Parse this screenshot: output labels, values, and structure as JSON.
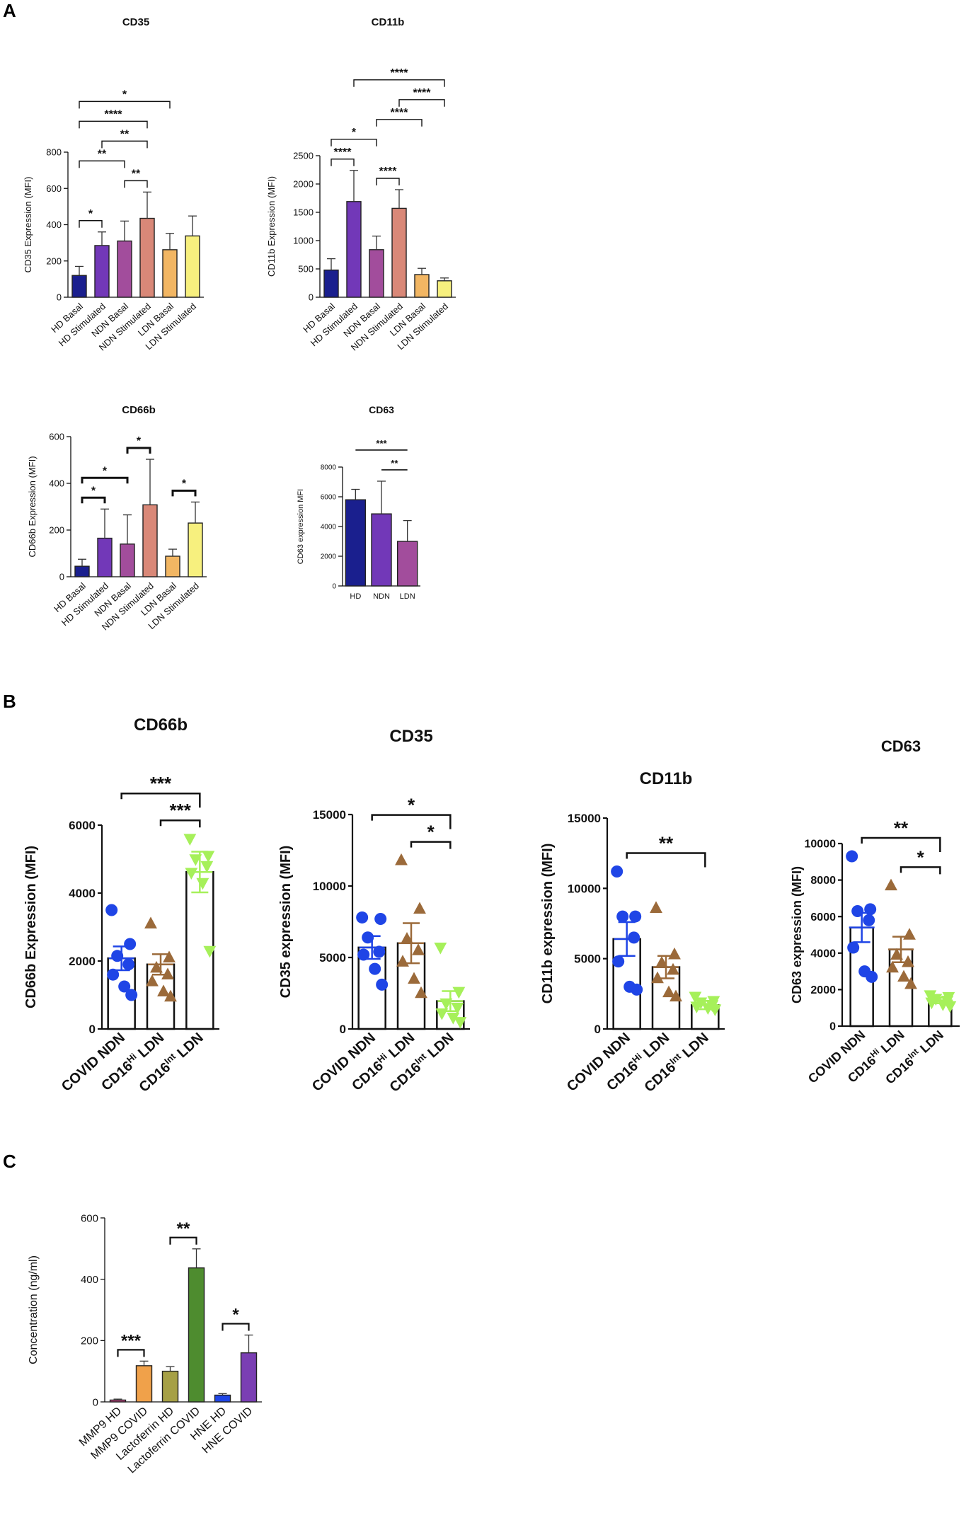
{
  "panels": {
    "a": "A",
    "b": "B",
    "c": "C"
  },
  "colors": {
    "hd_basal": "#1a1f8e",
    "hd_stim": "#7238b8",
    "ndn_basal": "#a24d9c",
    "ndn_stim": "#d98878",
    "ldn_basal": "#f2b663",
    "ldn_stim": "#f7f07e",
    "hd_bar": "#1a1f8e",
    "ndn_bar": "#7238b8",
    "ldn_bar": "#a24d9c",
    "blue_dot": "#1f45e6",
    "brown_tri": "#9b6a3a",
    "green_tri": "#a6f05a",
    "c_mmp9_hd": "#d9468f",
    "c_mmp9_covid": "#f0a14a",
    "c_lacto_hd": "#a6a045",
    "c_lacto_covid": "#4e8c2f",
    "c_hne_hd": "#1f45e6",
    "c_hne_covid": "#7a3eb3"
  },
  "chart_data": [
    {
      "id": "a_cd35",
      "type": "bar",
      "title": "CD35",
      "ylabel": "CD35 Expression (MFI)",
      "ylim": [
        0,
        800
      ],
      "yticks": [
        0,
        200,
        400,
        600,
        800
      ],
      "categories": [
        "HD Basal",
        "HD Stimulated",
        "NDN Basal",
        "NDN Stimulated",
        "LDN Basal",
        "LDN Stimulated"
      ],
      "values": [
        120,
        285,
        310,
        435,
        262,
        338
      ],
      "errors": [
        50,
        75,
        110,
        145,
        90,
        110
      ],
      "colors": [
        "hd_basal",
        "hd_stim",
        "ndn_basal",
        "ndn_stim",
        "ldn_basal",
        "ldn_stim"
      ],
      "annotations": [
        {
          "from": 0,
          "to": 1,
          "label": "*"
        },
        {
          "from": 2,
          "to": 3,
          "label": "**"
        },
        {
          "from": 0,
          "to": 2,
          "label": "**"
        },
        {
          "from": 1,
          "to": 3,
          "label": "**"
        },
        {
          "from": 0,
          "to": 3,
          "label": "****"
        },
        {
          "from": 0,
          "to": 4,
          "label": "*"
        }
      ]
    },
    {
      "id": "a_cd11b",
      "type": "bar",
      "title": "CD11b",
      "ylabel": "CD11b Expression (MFI)",
      "ylim": [
        0,
        2500
      ],
      "yticks": [
        0,
        500,
        1000,
        1500,
        2000,
        2500
      ],
      "categories": [
        "HD Basal",
        "HD Stimulated",
        "NDN Basal",
        "NDN Stimulated",
        "LDN Basal",
        "LDN Stimulated"
      ],
      "values": [
        480,
        1690,
        840,
        1570,
        400,
        290
      ],
      "errors": [
        200,
        550,
        240,
        330,
        110,
        50
      ],
      "colors": [
        "hd_basal",
        "hd_stim",
        "ndn_basal",
        "ndn_stim",
        "ldn_basal",
        "ldn_stim"
      ],
      "annotations": [
        {
          "from": 0,
          "to": 1,
          "label": "****"
        },
        {
          "from": 2,
          "to": 3,
          "label": "****"
        },
        {
          "from": 0,
          "to": 2,
          "label": "*"
        },
        {
          "from": 2,
          "to": 4,
          "label": "****"
        },
        {
          "from": 3,
          "to": 5,
          "label": "****"
        },
        {
          "from": 1,
          "to": 5,
          "label": "****"
        }
      ]
    },
    {
      "id": "a_cd66b",
      "type": "bar",
      "title": "CD66b",
      "ylabel": "CD66b Expression (MFI)",
      "ylim": [
        0,
        600
      ],
      "yticks": [
        0,
        200,
        400,
        600
      ],
      "categories": [
        "HD Basal",
        "HD Stimulated",
        "NDN Basal",
        "NDN Stimulated",
        "LDN Basal",
        "LDN Stimulated"
      ],
      "values": [
        45,
        165,
        140,
        308,
        88,
        230
      ],
      "errors": [
        30,
        125,
        125,
        195,
        30,
        90
      ],
      "colors": [
        "hd_basal",
        "hd_stim",
        "ndn_basal",
        "ndn_stim",
        "ldn_basal",
        "ldn_stim"
      ],
      "annotations": [
        {
          "from": 0,
          "to": 1,
          "label": "*"
        },
        {
          "from": 4,
          "to": 5,
          "label": "*"
        },
        {
          "from": 0,
          "to": 2,
          "label": "*"
        },
        {
          "from": 2,
          "to": 3,
          "label": "*"
        }
      ]
    },
    {
      "id": "a_cd63",
      "type": "bar",
      "title": "CD63",
      "ylabel": "CD63 expression MFI",
      "ylim": [
        0,
        8000
      ],
      "yticks": [
        0,
        2000,
        4000,
        6000,
        8000
      ],
      "categories": [
        "HD",
        "NDN",
        "LDN"
      ],
      "values": [
        5800,
        4850,
        3000
      ],
      "errors": [
        700,
        2200,
        1400
      ],
      "colors": [
        "hd_bar",
        "ndn_bar",
        "ldn_bar"
      ],
      "annotations": [
        {
          "from": 1,
          "to": 2,
          "label": "**"
        },
        {
          "from": 0,
          "to": 2,
          "label": "***"
        }
      ]
    },
    {
      "id": "b_cd66b",
      "type": "scatter-bar",
      "title": "CD66b",
      "ylabel": "CD66b Expression (MFI)",
      "ylim": [
        0,
        6000
      ],
      "yticks": [
        0,
        2000,
        4000,
        6000
      ],
      "categories": [
        "COVID NDN",
        "CD16^{Hi} LDN",
        "CD16^{Int} LDN"
      ],
      "values": [
        2080,
        1900,
        4620
      ],
      "errors": [
        350,
        300,
        600
      ],
      "points": [
        [
          3500,
          2500,
          2150,
          1900,
          1600,
          1250,
          1000
        ],
        [
          3100,
          2100,
          1800,
          1600,
          1400,
          1100,
          950
        ],
        [
          5600,
          5100,
          5000,
          4800,
          4600,
          4300,
          2300
        ]
      ],
      "colors": [
        "blue_dot",
        "brown_tri",
        "green_tri"
      ],
      "markers": [
        "circle",
        "triangle",
        "triangle-down"
      ],
      "annotations": [
        {
          "from": 1,
          "to": 2,
          "label": "***"
        },
        {
          "from": 0,
          "to": 2,
          "label": "***"
        }
      ]
    },
    {
      "id": "b_cd35",
      "type": "scatter-bar",
      "title": "CD35",
      "ylabel": "CD35 expression (MFI)",
      "ylim": [
        0,
        15000
      ],
      "yticks": [
        0,
        5000,
        10000,
        15000
      ],
      "categories": [
        "COVID NDN",
        "CD16^{Hi} LDN",
        "CD16^{Int} LDN"
      ],
      "values": [
        5700,
        6000,
        1950
      ],
      "errors": [
        800,
        1400,
        700
      ],
      "points": [
        [
          7800,
          7700,
          6400,
          5400,
          5200,
          4200,
          3100
        ],
        [
          11800,
          8400,
          6300,
          5500,
          4700,
          3500,
          2500
        ],
        [
          5700,
          2600,
          1800,
          1500,
          1100,
          800,
          500
        ]
      ],
      "colors": [
        "blue_dot",
        "brown_tri",
        "green_tri"
      ],
      "markers": [
        "circle",
        "triangle",
        "triangle-down"
      ],
      "annotations": [
        {
          "from": 1,
          "to": 2,
          "label": "*"
        },
        {
          "from": 0,
          "to": 2,
          "label": "*"
        }
      ]
    },
    {
      "id": "b_cd11b",
      "type": "scatter-bar",
      "title": "CD11b",
      "ylabel": "CD11b expression (MFI)",
      "ylim": [
        0,
        15000
      ],
      "yticks": [
        0,
        5000,
        10000,
        15000
      ],
      "categories": [
        "COVID NDN",
        "CD16^{Hi} LDN",
        "CD16^{Int} LDN"
      ],
      "values": [
        6400,
        4400,
        1700
      ],
      "errors": [
        1200,
        800,
        300
      ],
      "points": [
        [
          11200,
          8000,
          8000,
          6500,
          4800,
          3000,
          2800
        ],
        [
          8600,
          5300,
          4700,
          4200,
          3600,
          2600,
          2300
        ],
        [
          2300,
          2000,
          1900,
          1700,
          1600,
          1500,
          1400
        ]
      ],
      "colors": [
        "blue_dot",
        "brown_tri",
        "green_tri"
      ],
      "markers": [
        "circle",
        "triangle",
        "triangle-down"
      ],
      "annotations": [
        {
          "from": 0,
          "to": 2,
          "label": "**"
        }
      ]
    },
    {
      "id": "b_cd63",
      "type": "scatter-bar",
      "title": "CD63",
      "ylabel": "CD63 expression (MFI)",
      "ylim": [
        0,
        10000
      ],
      "yticks": [
        0,
        2000,
        4000,
        6000,
        8000,
        10000
      ],
      "categories": [
        "COVID NDN",
        "CD16^{Hi} LDN",
        "CD16^{Int} LDN"
      ],
      "values": [
        5400,
        4200,
        1400
      ],
      "errors": [
        800,
        700,
        150
      ],
      "points": [
        [
          9300,
          6400,
          6300,
          5800,
          4300,
          3000,
          2700
        ],
        [
          7700,
          5000,
          3900,
          3500,
          3200,
          2700,
          2300
        ],
        [
          1700,
          1600,
          1500,
          1400,
          1300,
          1200,
          1100
        ]
      ],
      "colors": [
        "blue_dot",
        "brown_tri",
        "green_tri"
      ],
      "markers": [
        "circle",
        "triangle",
        "triangle-down"
      ],
      "annotations": [
        {
          "from": 1,
          "to": 2,
          "label": "*"
        },
        {
          "from": 0,
          "to": 2,
          "label": "**"
        }
      ]
    },
    {
      "id": "c_conc",
      "type": "bar",
      "title": "",
      "ylabel": "Concentration (ng/ml)",
      "ylim": [
        0,
        600
      ],
      "yticks": [
        0,
        200,
        400,
        600
      ],
      "categories": [
        "MMP9 HD",
        "MMP9 COVID",
        "Lactoferrin HD",
        "Lactoferrin COVID",
        "HNE HD",
        "HNE COVID"
      ],
      "values": [
        6,
        118,
        100,
        437,
        22,
        160
      ],
      "errors": [
        3,
        15,
        15,
        62,
        5,
        58
      ],
      "colors": [
        "c_mmp9_hd",
        "c_mmp9_covid",
        "c_lacto_hd",
        "c_lacto_covid",
        "c_hne_hd",
        "c_hne_covid"
      ],
      "annotations": [
        {
          "from": 0,
          "to": 1,
          "label": "***"
        },
        {
          "from": 2,
          "to": 3,
          "label": "**"
        },
        {
          "from": 4,
          "to": 5,
          "label": "*"
        }
      ]
    }
  ]
}
